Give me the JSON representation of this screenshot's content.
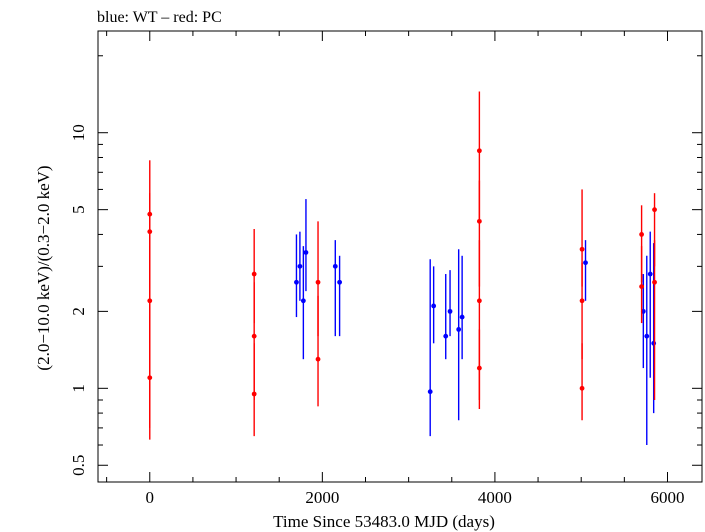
{
  "chart_data": {
    "type": "scatter",
    "title": "blue: WT – red: PC",
    "xlabel": "Time Since 53483.0 MJD (days)",
    "ylabel": "(2.0−10.0 keV)/(0.3−2.0 keV)",
    "xscale": "linear",
    "yscale": "log",
    "xlim": [
      -600,
      6400
    ],
    "ylim": [
      0.43,
      25
    ],
    "xticks": [
      0,
      2000,
      4000,
      6000
    ],
    "xtick_labels": [
      "0",
      "2000",
      "4000",
      "6000"
    ],
    "yticks": [
      0.5,
      1,
      2,
      5,
      10
    ],
    "ytick_labels": [
      "0.5",
      "1",
      "2",
      "5",
      "10"
    ],
    "grid": false,
    "legend": "none",
    "series": [
      {
        "name": "WT",
        "color": "#0000ff",
        "points": [
          {
            "x": 1700,
            "y": 2.6,
            "lo": 1.9,
            "hi": 4.0
          },
          {
            "x": 1740,
            "y": 3.0,
            "lo": 2.2,
            "hi": 4.1
          },
          {
            "x": 1780,
            "y": 2.2,
            "lo": 1.3,
            "hi": 3.6
          },
          {
            "x": 1810,
            "y": 3.4,
            "lo": 2.4,
            "hi": 5.5
          },
          {
            "x": 2150,
            "y": 3.0,
            "lo": 1.6,
            "hi": 3.8
          },
          {
            "x": 2200,
            "y": 2.6,
            "lo": 1.6,
            "hi": 3.3
          },
          {
            "x": 3250,
            "y": 0.97,
            "lo": 0.65,
            "hi": 3.2
          },
          {
            "x": 3290,
            "y": 2.1,
            "lo": 1.5,
            "hi": 3.0
          },
          {
            "x": 3430,
            "y": 1.6,
            "lo": 1.3,
            "hi": 2.8
          },
          {
            "x": 3480,
            "y": 2.0,
            "lo": 1.6,
            "hi": 2.9
          },
          {
            "x": 3580,
            "y": 1.7,
            "lo": 0.75,
            "hi": 3.5
          },
          {
            "x": 3620,
            "y": 1.9,
            "lo": 1.3,
            "hi": 3.3
          },
          {
            "x": 5050,
            "y": 3.1,
            "lo": 2.2,
            "hi": 3.8
          },
          {
            "x": 5720,
            "y": 2.0,
            "lo": 1.2,
            "hi": 2.8
          },
          {
            "x": 5760,
            "y": 1.6,
            "lo": 0.6,
            "hi": 3.3
          },
          {
            "x": 5800,
            "y": 2.8,
            "lo": 1.1,
            "hi": 4.1
          },
          {
            "x": 5840,
            "y": 1.5,
            "lo": 0.8,
            "hi": 3.7
          }
        ]
      },
      {
        "name": "PC",
        "color": "#ff0000",
        "points": [
          {
            "x": 0,
            "y": 4.8,
            "lo": 2.5,
            "hi": 7.8
          },
          {
            "x": 0,
            "y": 4.1,
            "lo": 1.5,
            "hi": 5.8
          },
          {
            "x": 0,
            "y": 2.2,
            "lo": 0.63,
            "hi": 3.6
          },
          {
            "x": 0,
            "y": 1.1,
            "lo": 0.7,
            "hi": 1.9
          },
          {
            "x": 1210,
            "y": 2.8,
            "lo": 1.8,
            "hi": 4.2
          },
          {
            "x": 1210,
            "y": 1.6,
            "lo": 0.9,
            "hi": 2.6
          },
          {
            "x": 1210,
            "y": 0.95,
            "lo": 0.65,
            "hi": 1.5
          },
          {
            "x": 1950,
            "y": 2.6,
            "lo": 1.6,
            "hi": 4.5
          },
          {
            "x": 1950,
            "y": 1.3,
            "lo": 0.85,
            "hi": 2.3
          },
          {
            "x": 3820,
            "y": 8.5,
            "lo": 4.5,
            "hi": 14.5
          },
          {
            "x": 3820,
            "y": 4.5,
            "lo": 2.5,
            "hi": 6.5
          },
          {
            "x": 3820,
            "y": 2.2,
            "lo": 0.83,
            "hi": 3.8
          },
          {
            "x": 3820,
            "y": 1.2,
            "lo": 0.9,
            "hi": 1.7
          },
          {
            "x": 5010,
            "y": 3.5,
            "lo": 2.5,
            "hi": 6.0
          },
          {
            "x": 5010,
            "y": 2.2,
            "lo": 1.3,
            "hi": 3.1
          },
          {
            "x": 5010,
            "y": 1.0,
            "lo": 0.75,
            "hi": 1.5
          },
          {
            "x": 5700,
            "y": 4.0,
            "lo": 2.6,
            "hi": 5.2
          },
          {
            "x": 5700,
            "y": 2.5,
            "lo": 1.8,
            "hi": 3.6
          },
          {
            "x": 5850,
            "y": 5.0,
            "lo": 3.0,
            "hi": 5.8
          },
          {
            "x": 5850,
            "y": 2.6,
            "lo": 0.9,
            "hi": 3.8
          }
        ]
      }
    ]
  }
}
